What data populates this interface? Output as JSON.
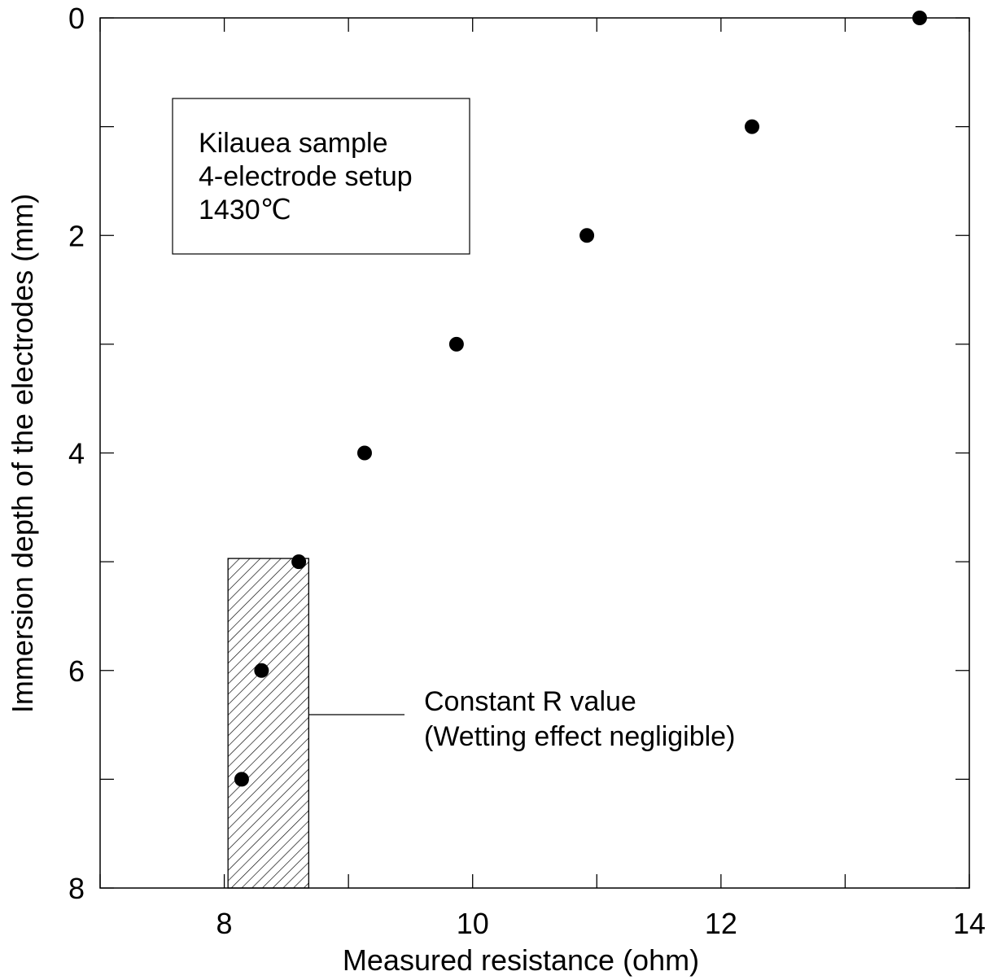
{
  "chart_data": {
    "type": "scatter",
    "xlabel": "Measured resistance (ohm)",
    "ylabel": "Immersion depth of the electrodes (mm)",
    "xlim": [
      7,
      14
    ],
    "ylim": [
      0,
      8
    ],
    "y_inverted": true,
    "x_tick_labels": [
      "8",
      "10",
      "12",
      "14"
    ],
    "x_tick_values": [
      8,
      10,
      12,
      14
    ],
    "x_minor_ticks": [
      7,
      8,
      9,
      10,
      11,
      12,
      13,
      14
    ],
    "y_tick_labels": [
      "0",
      "2",
      "4",
      "6",
      "8"
    ],
    "y_tick_values": [
      0,
      2,
      4,
      6,
      8
    ],
    "y_minor_ticks": [
      0,
      1,
      2,
      3,
      4,
      5,
      6,
      7,
      8
    ],
    "grid": false,
    "series": [
      {
        "points": [
          {
            "x": 13.6,
            "y": 0
          },
          {
            "x": 12.25,
            "y": 1
          },
          {
            "x": 10.92,
            "y": 2
          },
          {
            "x": 9.87,
            "y": 3
          },
          {
            "x": 9.13,
            "y": 4
          },
          {
            "x": 8.6,
            "y": 5
          },
          {
            "x": 8.3,
            "y": 6
          },
          {
            "x": 8.14,
            "y": 7
          }
        ],
        "marker": "filled-circle",
        "color": "#000000"
      }
    ],
    "hatched_region": {
      "x_from": 8.03,
      "x_to": 8.68,
      "y_from": 4.97,
      "y_to": 8
    },
    "info_box": {
      "lines": [
        "Kilauea sample",
        "4-electrode setup",
        "1430℃"
      ]
    },
    "annotation": {
      "lines": [
        "Constant R value",
        "(Wetting effect negligible)"
      ]
    }
  }
}
